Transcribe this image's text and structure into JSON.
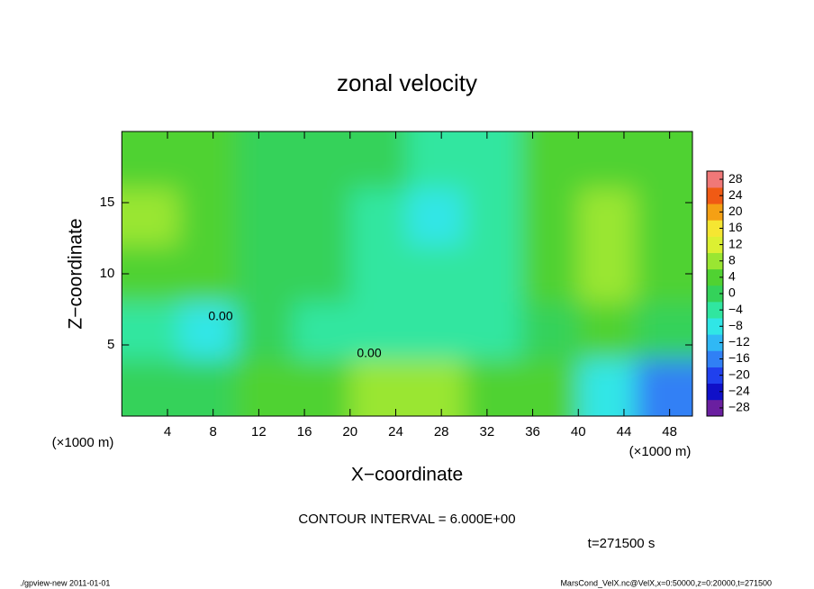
{
  "chart_data": {
    "type": "heatmap",
    "title": "zonal velocity",
    "x_label": "X−coordinate",
    "y_label": "Z−coordinate",
    "x_unit_label": "(×1000 m)",
    "y_unit_label": "(×1000 m)",
    "xlim": [
      0,
      50
    ],
    "ylim": [
      0,
      20
    ],
    "xticks": [
      4,
      8,
      12,
      16,
      20,
      24,
      28,
      32,
      36,
      40,
      44,
      48
    ],
    "yticks": [
      5,
      10,
      15
    ],
    "x_edges": [
      0,
      5,
      10,
      15,
      20,
      25,
      30,
      35,
      40,
      45,
      50
    ],
    "y_edges": [
      0,
      4,
      8,
      12,
      16,
      20
    ],
    "z": [
      [
        1,
        -2,
        3,
        2,
        6,
        7,
        4,
        2,
        -10,
        -16
      ],
      [
        -3,
        -8,
        -2,
        -3,
        -4,
        -4,
        -3,
        0,
        2,
        1
      ],
      [
        4,
        3,
        1,
        -2,
        -4,
        -6,
        -4,
        4,
        9,
        5
      ],
      [
        6,
        2,
        1,
        0,
        -4,
        -8,
        -4,
        4,
        8,
        5
      ],
      [
        4,
        3,
        1,
        0,
        -2,
        -4,
        -3,
        3,
        4,
        3
      ]
    ],
    "contour_labels": [
      "0.00",
      "0.00"
    ],
    "colorbar": {
      "lim": [
        -30,
        30
      ],
      "colors": [
        "#6a1fa0",
        "#1010c8",
        "#2040ee",
        "#3080f5",
        "#30b8f5",
        "#30e6e6",
        "#30e6a0",
        "#34d25a",
        "#50d232",
        "#9ae632",
        "#dcf032",
        "#f5e632",
        "#f5a014",
        "#f05a14",
        "#f07878"
      ],
      "ticks": [
        28,
        24,
        20,
        16,
        12,
        8,
        4,
        0,
        {
          "value": -4,
          "label": "−4"
        },
        {
          "value": -8,
          "label": "−8"
        },
        {
          "value": -12,
          "label": "−12"
        },
        {
          "value": -16,
          "label": "−16"
        },
        {
          "value": -20,
          "label": "−20"
        },
        {
          "value": -24,
          "label": "−24"
        },
        {
          "value": -28,
          "label": "−28"
        }
      ]
    },
    "contour_interval_label": "CONTOUR INTERVAL = 6.000E+00",
    "time_label": "t=271500 s",
    "footer_left": "./gpview-new  2011-01-01",
    "footer_right": "MarsCond_VelX.nc@VelX,x=0:50000,z=0:20000,t=271500"
  }
}
